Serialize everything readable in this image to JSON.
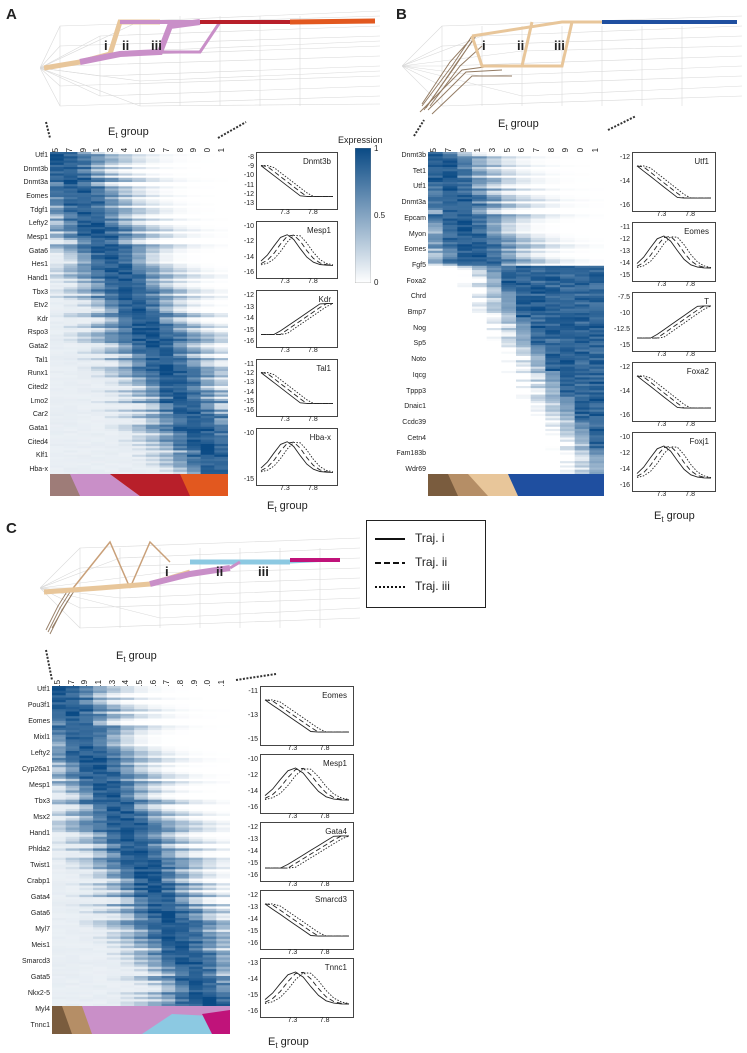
{
  "panel_labels": [
    "A",
    "B",
    "C"
  ],
  "et_group_label": "E",
  "et_group_sub": "t",
  "et_group_suffix": " group",
  "tick_groups_A": [
    "6.5",
    "6.7",
    "6.9",
    "7.1",
    "7.3",
    "7.4",
    "7.5",
    "7.6",
    "7.7",
    "7.8",
    "7.9",
    "8.0",
    "8.1"
  ],
  "tick_groups_B": [
    "6.5",
    "6.7",
    "6.9",
    "7.1",
    "7.3",
    "7.5",
    "7.6",
    "7.7",
    "7.8",
    "7.9",
    "8.0",
    "8.1"
  ],
  "tick_groups_C": [
    "6.5",
    "6.7",
    "6.9",
    "7.1",
    "7.3",
    "7.4",
    "7.5",
    "7.6",
    "7.7",
    "7.8",
    "7.9",
    "8.0",
    "8.1"
  ],
  "colorbar": {
    "title": "Expression",
    "ticks": [
      "1",
      "0.5",
      "0"
    ],
    "high_color": "#0a4a85",
    "low_color": "#ffffff"
  },
  "trajectory_labels": [
    "i",
    "ii",
    "iii"
  ],
  "legend": {
    "items": [
      "Traj. i",
      "Traj. ii",
      "Traj. iii"
    ]
  },
  "panelA": {
    "genes": [
      "Utf1",
      "Dnmt3b",
      "Dnmt3a",
      "Eomes",
      "Tdgf1",
      "Lefty2",
      "Mesp1",
      "Gata6",
      "Hes1",
      "Hand1",
      "Tbx3",
      "Etv2",
      "Kdr",
      "Rspo3",
      "Gata2",
      "Tal1",
      "Runx1",
      "Cited2",
      "Lmo2",
      "Car2",
      "Gata1",
      "Cited4",
      "Klf1",
      "Hba-x"
    ],
    "mini_plots": [
      {
        "name": "Dnmt3b",
        "yticks": [
          "-8",
          "-9",
          "-10",
          "-11",
          "-12",
          "-13"
        ],
        "xticks": [
          "7.3",
          "7.8"
        ]
      },
      {
        "name": "Mesp1",
        "yticks": [
          "-10",
          "-12",
          "-14",
          "-16"
        ],
        "xticks": [
          "7.3",
          "7.8"
        ]
      },
      {
        "name": "Kdr",
        "yticks": [
          "-12",
          "-13",
          "-14",
          "-15",
          "-16"
        ],
        "xticks": [
          "7.3",
          "7.8"
        ]
      },
      {
        "name": "Tal1",
        "yticks": [
          "-11",
          "-12",
          "-13",
          "-14",
          "-15",
          "-16"
        ],
        "xticks": [
          "7.3",
          "7.8"
        ]
      },
      {
        "name": "Hba-x",
        "yticks": [
          "-10",
          "-15"
        ],
        "xticks": [
          "7.3",
          "7.8"
        ]
      }
    ]
  },
  "panelB": {
    "genes": [
      "Dnmt3b",
      "Tet1",
      "Utf1",
      "Dnmt3a",
      "Epcam",
      "Myon",
      "Eomes",
      "Fgf5",
      "Foxa2",
      "Chrd",
      "Bmp7",
      "Nog",
      "Sp5",
      "Noto",
      "Iqcg",
      "Tppp3",
      "Dnaic1",
      "Ccdc39",
      "Cetn4",
      "Fam183b",
      "Wdr69"
    ],
    "mini_plots": [
      {
        "name": "Utf1",
        "yticks": [
          "-12",
          "-14",
          "-16"
        ],
        "xticks": [
          "7.3",
          "7.8"
        ]
      },
      {
        "name": "Eomes",
        "yticks": [
          "-11",
          "-12",
          "-13",
          "-14",
          "-15"
        ],
        "xticks": [
          "7.3",
          "7.8"
        ]
      },
      {
        "name": "T",
        "yticks": [
          "-7.5",
          "-10",
          "-12.5",
          "-15"
        ],
        "xticks": [
          "7.3",
          "7.8"
        ]
      },
      {
        "name": "Foxa2",
        "yticks": [
          "-12",
          "-14",
          "-16"
        ],
        "xticks": [
          "7.3",
          "7.8"
        ]
      },
      {
        "name": "Foxj1",
        "yticks": [
          "-10",
          "-12",
          "-14",
          "-16"
        ],
        "xticks": [
          "7.3",
          "7.8"
        ]
      }
    ]
  },
  "panelC": {
    "genes": [
      "Utf1",
      "Pou3f1",
      "Eomes",
      "Mixl1",
      "Lefty2",
      "Cyp26a1",
      "Mesp1",
      "Tbx3",
      "Msx2",
      "Hand1",
      "Phlda2",
      "Twist1",
      "Crabp1",
      "Gata4",
      "Gata6",
      "Myl7",
      "Meis1",
      "Smarcd3",
      "Gata5",
      "Nkx2-5",
      "Myl4",
      "Tnnc1"
    ],
    "mini_plots": [
      {
        "name": "Eomes",
        "yticks": [
          "-11",
          "-13",
          "-15"
        ],
        "xticks": [
          "7.3",
          "7.8"
        ]
      },
      {
        "name": "Mesp1",
        "yticks": [
          "-10",
          "-12",
          "-14",
          "-16"
        ],
        "xticks": [
          "7.3",
          "7.8"
        ]
      },
      {
        "name": "Gata4",
        "yticks": [
          "-12",
          "-13",
          "-14",
          "-15",
          "-16"
        ],
        "xticks": [
          "7.3",
          "7.8"
        ]
      },
      {
        "name": "Smarcd3",
        "yticks": [
          "-12",
          "-13",
          "-14",
          "-15",
          "-16"
        ],
        "xticks": [
          "7.3",
          "7.8"
        ]
      },
      {
        "name": "Tnnc1",
        "yticks": [
          "-13",
          "-14",
          "-15",
          "-16"
        ],
        "xticks": [
          "7.3",
          "7.8"
        ]
      }
    ]
  }
}
